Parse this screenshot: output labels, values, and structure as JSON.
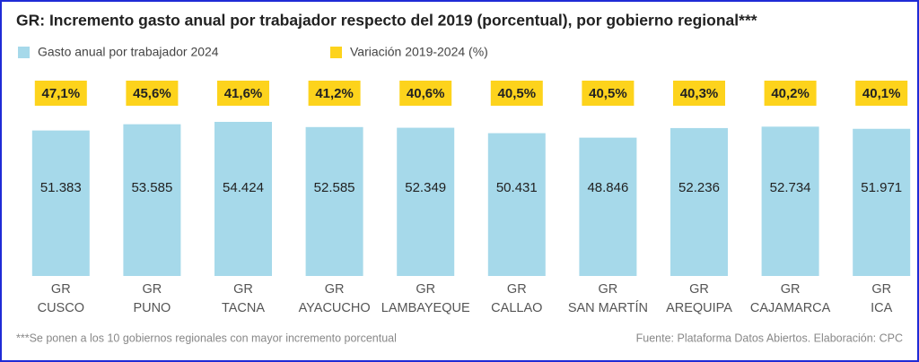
{
  "chart_data": {
    "type": "bar",
    "title": "GR: Incremento gasto anual por trabajador respecto del 2019 (porcentual), por gobierno regional***",
    "categories": [
      "GR\nCUSCO",
      "GR\nPUNO",
      "GR\nTACNA",
      "GR\nAYACUCHO",
      "GR\nLAMBAYEQUE",
      "GR\nCALLAO",
      "GR\nSAN MARTÍN",
      "GR\nAREQUIPA",
      "GR\nCAJAMARCA",
      "GR\nICA"
    ],
    "series": [
      {
        "name": "Gasto anual por trabajador 2024",
        "color": "#a6d9ea",
        "values": [
          51383,
          53585,
          54424,
          52585,
          52349,
          50431,
          48846,
          52236,
          52734,
          51971
        ],
        "value_labels": [
          "51.383",
          "53.585",
          "54.424",
          "52.585",
          "52.349",
          "50.431",
          "48.846",
          "52.236",
          "52.734",
          "51.971"
        ]
      },
      {
        "name": "Variación 2019-2024 (%)",
        "color": "#fdd31c",
        "values": [
          47.1,
          45.6,
          41.6,
          41.2,
          40.6,
          40.5,
          40.5,
          40.3,
          40.2,
          40.1
        ],
        "value_labels": [
          "47,1%",
          "45,6%",
          "41,6%",
          "41,2%",
          "40,6%",
          "40,5%",
          "40,5%",
          "40,3%",
          "40,2%",
          "40,1%"
        ]
      }
    ],
    "footnote": "***Se ponen a los 10 gobiernos regionales con mayor incremento porcentual",
    "source": "Fuente: Plataforma Datos Abiertos. Elaboración: CPC"
  }
}
